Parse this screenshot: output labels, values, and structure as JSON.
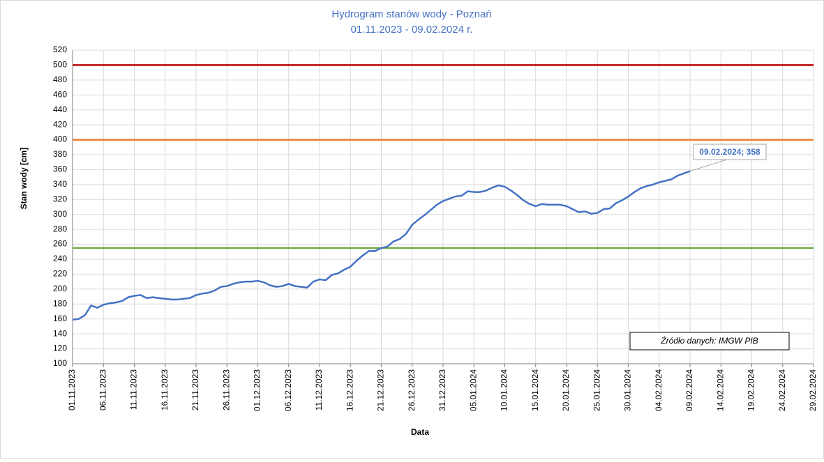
{
  "chart_data": {
    "type": "line",
    "title": "Hydrogram stanów wody - Poznań",
    "subtitle": "01.11.2023 - 09.02.2024 r.",
    "x_label": "Data",
    "y_label": "Stan wody [cm]",
    "x": [
      "01.11.2023",
      "02.11.2023",
      "03.11.2023",
      "04.11.2023",
      "05.11.2023",
      "06.11.2023",
      "07.11.2023",
      "08.11.2023",
      "09.11.2023",
      "10.11.2023",
      "11.11.2023",
      "12.11.2023",
      "13.11.2023",
      "14.11.2023",
      "15.11.2023",
      "16.11.2023",
      "17.11.2023",
      "18.11.2023",
      "19.11.2023",
      "20.11.2023",
      "21.11.2023",
      "22.11.2023",
      "23.11.2023",
      "24.11.2023",
      "25.11.2023",
      "26.11.2023",
      "27.11.2023",
      "28.11.2023",
      "29.11.2023",
      "30.11.2023",
      "01.12.2023",
      "02.12.2023",
      "03.12.2023",
      "04.12.2023",
      "05.12.2023",
      "06.12.2023",
      "07.12.2023",
      "08.12.2023",
      "09.12.2023",
      "10.12.2023",
      "11.12.2023",
      "12.12.2023",
      "13.12.2023",
      "14.12.2023",
      "15.12.2023",
      "16.12.2023",
      "17.12.2023",
      "18.12.2023",
      "19.12.2023",
      "20.12.2023",
      "21.12.2023",
      "22.12.2023",
      "23.12.2023",
      "24.12.2023",
      "25.12.2023",
      "26.12.2023",
      "27.12.2023",
      "28.12.2023",
      "29.12.2023",
      "30.12.2023",
      "31.12.2023",
      "01.01.2024",
      "02.01.2024",
      "03.01.2024",
      "04.01.2024",
      "05.01.2024",
      "06.01.2024",
      "07.01.2024",
      "08.01.2024",
      "09.01.2024",
      "10.01.2024",
      "11.01.2024",
      "12.01.2024",
      "13.01.2024",
      "14.01.2024",
      "15.01.2024",
      "16.01.2024",
      "17.01.2024",
      "18.01.2024",
      "19.01.2024",
      "20.01.2024",
      "21.01.2024",
      "22.01.2024",
      "23.01.2024",
      "24.01.2024",
      "25.01.2024",
      "26.01.2024",
      "27.01.2024",
      "28.01.2024",
      "29.01.2024",
      "30.01.2024",
      "31.01.2024",
      "01.02.2024",
      "02.02.2024",
      "03.02.2024",
      "04.02.2024",
      "05.02.2024",
      "06.02.2024",
      "07.02.2024",
      "08.02.2024",
      "09.02.2024"
    ],
    "values": [
      159,
      160,
      165,
      178,
      175,
      179,
      181,
      182,
      184,
      189,
      191,
      192,
      188,
      189,
      188,
      187,
      186,
      186,
      187,
      188,
      192,
      194,
      195,
      198,
      203,
      204,
      207,
      209,
      210,
      210,
      211,
      209,
      205,
      203,
      204,
      207,
      204,
      203,
      202,
      210,
      213,
      212,
      219,
      221,
      226,
      230,
      238,
      245,
      251,
      251,
      255,
      257,
      264,
      267,
      274,
      286,
      293,
      299,
      306,
      313,
      318,
      321,
      324,
      325,
      331,
      330,
      330,
      332,
      336,
      339,
      337,
      332,
      326,
      319,
      314,
      311,
      314,
      313,
      313,
      313,
      311,
      307,
      303,
      304,
      301,
      302,
      307,
      308,
      315,
      319,
      324,
      330,
      335,
      338,
      340,
      343,
      345,
      347,
      352,
      355,
      358
    ],
    "color": "#4472c4",
    "xlim": [
      "01.11.2023",
      "29.02.2024"
    ],
    "xticks": [
      "01.11.2023",
      "06.11.2023",
      "11.11.2023",
      "16.11.2023",
      "21.11.2023",
      "26.11.2023",
      "01.12.2023",
      "06.12.2023",
      "11.12.2023",
      "16.12.2023",
      "21.12.2023",
      "26.12.2023",
      "31.12.2023",
      "05.01.2024",
      "10.01.2024",
      "15.01.2024",
      "20.01.2024",
      "25.01.2024",
      "30.01.2024",
      "04.02.2024",
      "09.02.2024",
      "14.02.2024",
      "19.02.2024",
      "24.02.2024",
      "29.02.2024"
    ],
    "ylim": [
      100,
      520
    ],
    "yticks": [
      100,
      120,
      140,
      160,
      180,
      200,
      220,
      240,
      260,
      280,
      300,
      320,
      340,
      360,
      380,
      400,
      420,
      440,
      460,
      480,
      500,
      520
    ],
    "grid": true,
    "reference_lines": [
      {
        "value": 500,
        "color": "#c00000"
      },
      {
        "value": 400,
        "color": "#ed7d31"
      },
      {
        "value": 255,
        "color": "#70ad47"
      }
    ],
    "annotation": "09.02.2024; 358",
    "source": "Źródło danych: IMGW PIB"
  }
}
